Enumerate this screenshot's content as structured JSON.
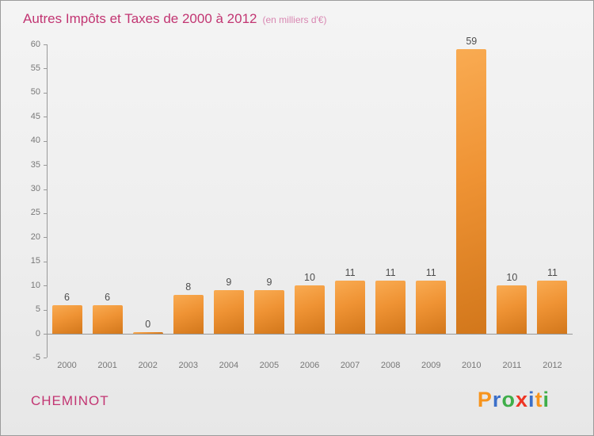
{
  "chart": {
    "title": "Autres Impôts et Taxes de 2000 à 2012",
    "subtitle": "(en milliers d'€)"
  },
  "chart_data": {
    "type": "bar",
    "title": "Autres Impôts et Taxes de 2000 à 2012",
    "subtitle": "(en milliers d'€)",
    "categories": [
      "2000",
      "2001",
      "2002",
      "2003",
      "2004",
      "2005",
      "2006",
      "2007",
      "2008",
      "2009",
      "2010",
      "2011",
      "2012"
    ],
    "values": [
      6,
      6,
      0,
      8,
      9,
      9,
      10,
      11,
      11,
      11,
      59,
      10,
      11
    ],
    "xlabel": "",
    "ylabel": "",
    "ylim": [
      -5,
      60
    ],
    "ytick_step": 5,
    "grid": false,
    "legend": "none",
    "bar_color_top": "#f9ab52",
    "bar_color_bottom": "#d2771b",
    "axis_color": "#999999",
    "tick_label_color": "#777777",
    "value_label_color": "#4d4d4d"
  },
  "footer": {
    "entity": "CHEMINOT",
    "logo": {
      "text": "Proxiti",
      "letter_colors": [
        "#f7941d",
        "#3b6fc9",
        "#3fae49",
        "#ee3524",
        "#3b6fc9",
        "#f7941d",
        "#3fae49"
      ]
    }
  },
  "colors": {
    "title": "#c23572",
    "subtitle": "#d987b2",
    "background": "#efefef"
  }
}
